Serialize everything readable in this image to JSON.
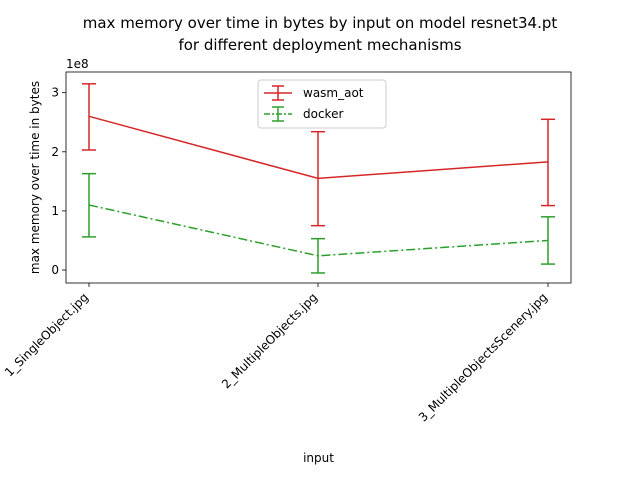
{
  "chart_data": {
    "type": "line",
    "title": "max memory over time in bytes by input on model resnet34.pt",
    "subtitle": "for different deployment mechanisms",
    "xlabel": "input",
    "ylabel": "max memory over time in bytes",
    "y_offset_label": "1e8",
    "y_scale": 100000000,
    "ylim": [
      -0.22,
      3.35
    ],
    "y_ticks": [
      0,
      1,
      2,
      3
    ],
    "y_tick_labels": [
      "0",
      "1",
      "2",
      "3"
    ],
    "categories": [
      "1_SingleObject.jpg",
      "2_MultipleObjects.jpg",
      "3_MultipleObjectsScenery.jpg"
    ],
    "series": [
      {
        "name": "wasm_aot",
        "color": "#d62728",
        "linestyle": "solid",
        "values": [
          2.6,
          1.55,
          1.83
        ],
        "error_lower": [
          2.03,
          0.75,
          1.09
        ],
        "error_upper": [
          3.15,
          2.34,
          2.55
        ]
      },
      {
        "name": "docker",
        "color": "#2ca02c",
        "linestyle": "dashdot",
        "values": [
          1.1,
          0.24,
          0.5
        ],
        "error_lower": [
          0.56,
          -0.05,
          0.1
        ],
        "error_upper": [
          1.63,
          0.53,
          0.9
        ]
      }
    ],
    "legend_position": "upper center",
    "grid": false
  }
}
